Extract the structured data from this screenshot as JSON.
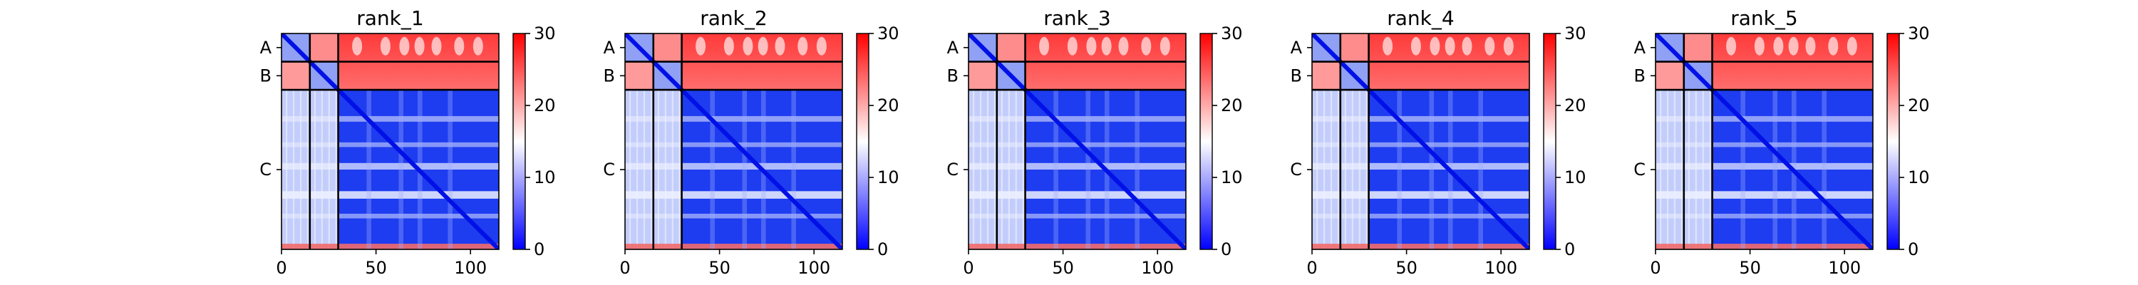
{
  "chart_data": [
    {
      "type": "heatmap",
      "title": "rank_1",
      "chain_labels": [
        "A",
        "B",
        "C"
      ],
      "chain_boundaries": [
        15,
        30
      ],
      "residue_count": 115,
      "x_ticks": [
        "0",
        "50",
        "100"
      ],
      "x_tick_values": [
        0,
        50,
        100
      ],
      "colorbar_ticks": [
        "0",
        "10",
        "20",
        "30"
      ],
      "colorbar_tick_values": [
        0,
        10,
        20,
        30
      ],
      "vmin": 0,
      "vmax": 30,
      "colormap": [
        "#0000ff",
        "#ffffff",
        "#ff0000"
      ],
      "xlabel": "",
      "ylabel": ""
    },
    {
      "type": "heatmap",
      "title": "rank_2",
      "chain_labels": [
        "A",
        "B",
        "C"
      ],
      "chain_boundaries": [
        15,
        30
      ],
      "residue_count": 115,
      "x_ticks": [
        "0",
        "50",
        "100"
      ],
      "x_tick_values": [
        0,
        50,
        100
      ],
      "colorbar_ticks": [
        "0",
        "10",
        "20",
        "30"
      ],
      "colorbar_tick_values": [
        0,
        10,
        20,
        30
      ],
      "vmin": 0,
      "vmax": 30,
      "colormap": [
        "#0000ff",
        "#ffffff",
        "#ff0000"
      ],
      "xlabel": "",
      "ylabel": ""
    },
    {
      "type": "heatmap",
      "title": "rank_3",
      "chain_labels": [
        "A",
        "B",
        "C"
      ],
      "chain_boundaries": [
        15,
        30
      ],
      "residue_count": 115,
      "x_ticks": [
        "0",
        "50",
        "100"
      ],
      "x_tick_values": [
        0,
        50,
        100
      ],
      "colorbar_ticks": [
        "0",
        "10",
        "20",
        "30"
      ],
      "colorbar_tick_values": [
        0,
        10,
        20,
        30
      ],
      "vmin": 0,
      "vmax": 30,
      "colormap": [
        "#0000ff",
        "#ffffff",
        "#ff0000"
      ],
      "xlabel": "",
      "ylabel": ""
    },
    {
      "type": "heatmap",
      "title": "rank_4",
      "chain_labels": [
        "A",
        "B",
        "C"
      ],
      "chain_boundaries": [
        15,
        30
      ],
      "residue_count": 115,
      "x_ticks": [
        "0",
        "50",
        "100"
      ],
      "x_tick_values": [
        0,
        50,
        100
      ],
      "colorbar_ticks": [
        "0",
        "10",
        "20",
        "30"
      ],
      "colorbar_tick_values": [
        0,
        10,
        20,
        30
      ],
      "vmin": 0,
      "vmax": 30,
      "colormap": [
        "#0000ff",
        "#ffffff",
        "#ff0000"
      ],
      "xlabel": "",
      "ylabel": ""
    },
    {
      "type": "heatmap",
      "title": "rank_5",
      "chain_labels": [
        "A",
        "B",
        "C"
      ],
      "chain_boundaries": [
        15,
        30
      ],
      "residue_count": 115,
      "x_ticks": [
        "0",
        "50",
        "100"
      ],
      "x_tick_values": [
        0,
        50,
        100
      ],
      "colorbar_ticks": [
        "0",
        "10",
        "20",
        "30"
      ],
      "colorbar_tick_values": [
        0,
        10,
        20,
        30
      ],
      "vmin": 0,
      "vmax": 30,
      "colormap": [
        "#0000ff",
        "#ffffff",
        "#ff0000"
      ],
      "xlabel": "",
      "ylabel": ""
    }
  ]
}
